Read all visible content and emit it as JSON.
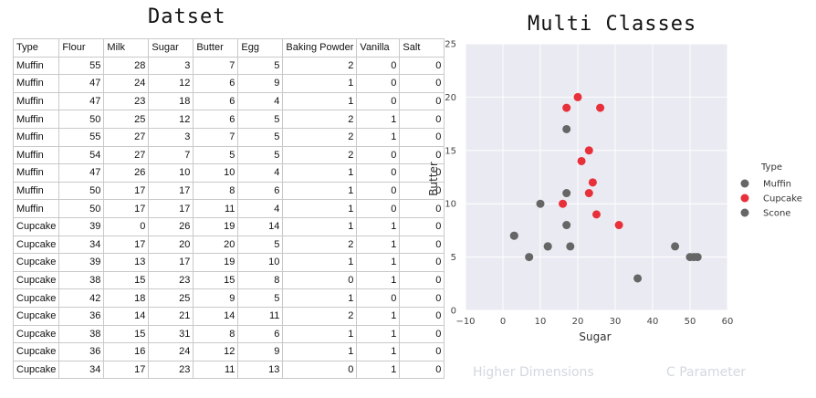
{
  "dataset_title": "Datset",
  "chart_title": "Multi Classes",
  "table": {
    "columns": [
      "Type",
      "Flour",
      "Milk",
      "Sugar",
      "Butter",
      "Egg",
      "Baking Powder",
      "Vanilla",
      "Salt"
    ],
    "rows": [
      [
        "Muffin",
        "55",
        "28",
        "3",
        "7",
        "5",
        "2",
        "0",
        "0"
      ],
      [
        "Muffin",
        "47",
        "24",
        "12",
        "6",
        "9",
        "1",
        "0",
        "0"
      ],
      [
        "Muffin",
        "47",
        "23",
        "18",
        "6",
        "4",
        "1",
        "0",
        "0"
      ],
      [
        "Muffin",
        "50",
        "25",
        "12",
        "6",
        "5",
        "2",
        "1",
        "0"
      ],
      [
        "Muffin",
        "55",
        "27",
        "3",
        "7",
        "5",
        "2",
        "1",
        "0"
      ],
      [
        "Muffin",
        "54",
        "27",
        "7",
        "5",
        "5",
        "2",
        "0",
        "0"
      ],
      [
        "Muffin",
        "47",
        "26",
        "10",
        "10",
        "4",
        "1",
        "0",
        "0"
      ],
      [
        "Muffin",
        "50",
        "17",
        "17",
        "8",
        "6",
        "1",
        "0",
        "0"
      ],
      [
        "Muffin",
        "50",
        "17",
        "17",
        "11",
        "4",
        "1",
        "0",
        "0"
      ],
      [
        "Cupcake",
        "39",
        "0",
        "26",
        "19",
        "14",
        "1",
        "1",
        "0"
      ],
      [
        "Cupcake",
        "34",
        "17",
        "20",
        "20",
        "5",
        "2",
        "1",
        "0"
      ],
      [
        "Cupcake",
        "39",
        "13",
        "17",
        "19",
        "10",
        "1",
        "1",
        "0"
      ],
      [
        "Cupcake",
        "38",
        "15",
        "23",
        "15",
        "8",
        "0",
        "1",
        "0"
      ],
      [
        "Cupcake",
        "42",
        "18",
        "25",
        "9",
        "5",
        "1",
        "0",
        "0"
      ],
      [
        "Cupcake",
        "36",
        "14",
        "21",
        "14",
        "11",
        "2",
        "1",
        "0"
      ],
      [
        "Cupcake",
        "38",
        "15",
        "31",
        "8",
        "6",
        "1",
        "1",
        "0"
      ],
      [
        "Cupcake",
        "36",
        "16",
        "24",
        "12",
        "9",
        "1",
        "1",
        "0"
      ],
      [
        "Cupcake",
        "34",
        "17",
        "23",
        "11",
        "13",
        "0",
        "1",
        "0"
      ]
    ]
  },
  "footer": {
    "link1": "Higher Dimensions",
    "link2": "C Parameter"
  },
  "colors": {
    "plot_bg": "#eaeaf2",
    "grid": "#ffffff",
    "muffin": "#666666",
    "cupcake": "#e8303a",
    "scone": "#666666"
  },
  "chart_data": {
    "type": "scatter",
    "title": "Multi Classes",
    "xlabel": "Sugar",
    "ylabel": "Butter",
    "xlim": [
      -10,
      60
    ],
    "ylim": [
      0,
      25
    ],
    "xticks": [
      "−10",
      "0",
      "10",
      "20",
      "30",
      "40",
      "50",
      "60"
    ],
    "yticks": [
      "0",
      "5",
      "10",
      "15",
      "20",
      "25"
    ],
    "grid": true,
    "legend_title": "Type",
    "legend_position": "right",
    "series": [
      {
        "name": "Muffin",
        "points": [
          [
            3,
            7
          ],
          [
            12,
            6
          ],
          [
            18,
            6
          ],
          [
            12,
            6
          ],
          [
            3,
            7
          ],
          [
            7,
            5
          ],
          [
            10,
            10
          ],
          [
            17,
            8
          ],
          [
            17,
            11
          ],
          [
            17,
            17
          ]
        ]
      },
      {
        "name": "Cupcake",
        "points": [
          [
            26,
            19
          ],
          [
            20,
            20
          ],
          [
            17,
            19
          ],
          [
            23,
            15
          ],
          [
            25,
            9
          ],
          [
            21,
            14
          ],
          [
            31,
            8
          ],
          [
            24,
            12
          ],
          [
            23,
            11
          ],
          [
            16,
            10
          ]
        ]
      },
      {
        "name": "Scone",
        "points": [
          [
            36,
            3
          ],
          [
            46,
            6
          ],
          [
            50,
            5
          ],
          [
            51,
            5
          ],
          [
            52,
            5
          ]
        ]
      }
    ]
  }
}
